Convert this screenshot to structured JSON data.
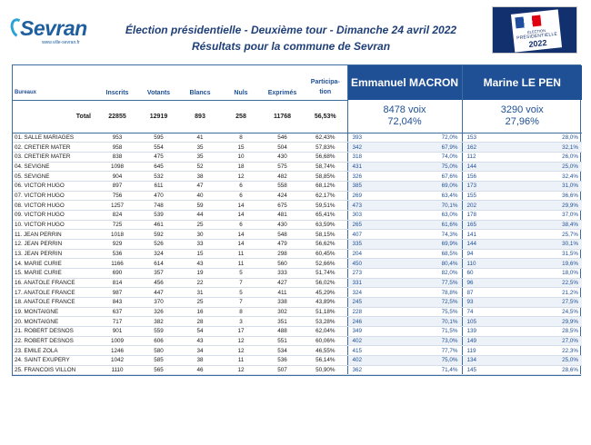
{
  "header": {
    "logo_text": "Sevran",
    "logo_url": "www.ville-sevran.fr",
    "title_line1": "Élection présidentielle - Deuxième tour - Dimanche 24 avril 2022",
    "title_line2": "Résultats pour la commune de Sevran",
    "emblem_line1": "ÉLECTION",
    "emblem_line2": "PRÉSIDENTIELLE",
    "emblem_line3": "2022"
  },
  "table": {
    "col_bureaux": "Bureaux",
    "col_inscrits": "Inscrits",
    "col_votants": "Votants",
    "col_blancs": "Blancs",
    "col_nuls": "Nuls",
    "col_exprimes": "Exprimés",
    "col_participation_1": "Participa-",
    "col_participation_2": "tion",
    "candidate1": "Emmanuel MACRON",
    "candidate2": "Marine LE PEN",
    "total": {
      "label": "Total",
      "inscrits": "22855",
      "votants": "12919",
      "blancs": "893",
      "nuls": "258",
      "exprimes": "11768",
      "participation": "56,53%",
      "c1_voix": "8478 voix",
      "c1_pct": "72,04%",
      "c2_voix": "3290 voix",
      "c2_pct": "27,96%"
    },
    "rows": [
      {
        "bureau": "01. SALLE MARIAGES",
        "inscrits": "953",
        "votants": "595",
        "blancs": "41",
        "nuls": "8",
        "exprimes": "546",
        "participation": "62,43%",
        "c1_v": "393",
        "c1_p": "72,0%",
        "c2_v": "153",
        "c2_p": "28,0%"
      },
      {
        "bureau": "02. CRETIER MATER",
        "inscrits": "958",
        "votants": "554",
        "blancs": "35",
        "nuls": "15",
        "exprimes": "504",
        "participation": "57,83%",
        "c1_v": "342",
        "c1_p": "67,9%",
        "c2_v": "162",
        "c2_p": "32,1%"
      },
      {
        "bureau": "03. CRETIER MATER",
        "inscrits": "838",
        "votants": "475",
        "blancs": "35",
        "nuls": "10",
        "exprimes": "430",
        "participation": "56,68%",
        "c1_v": "318",
        "c1_p": "74,0%",
        "c2_v": "112",
        "c2_p": "26,0%"
      },
      {
        "bureau": "04. SEVIGNE",
        "inscrits": "1098",
        "votants": "645",
        "blancs": "52",
        "nuls": "18",
        "exprimes": "575",
        "participation": "58,74%",
        "c1_v": "431",
        "c1_p": "75,0%",
        "c2_v": "144",
        "c2_p": "25,0%"
      },
      {
        "bureau": "05. SEVIGNE",
        "inscrits": "904",
        "votants": "532",
        "blancs": "38",
        "nuls": "12",
        "exprimes": "482",
        "participation": "58,85%",
        "c1_v": "326",
        "c1_p": "67,6%",
        "c2_v": "156",
        "c2_p": "32,4%"
      },
      {
        "bureau": "06. VICTOR HUGO",
        "inscrits": "897",
        "votants": "611",
        "blancs": "47",
        "nuls": "6",
        "exprimes": "558",
        "participation": "68,12%",
        "c1_v": "385",
        "c1_p": "69,0%",
        "c2_v": "173",
        "c2_p": "31,0%"
      },
      {
        "bureau": "07. VICTOR HUGO",
        "inscrits": "756",
        "votants": "470",
        "blancs": "40",
        "nuls": "6",
        "exprimes": "424",
        "participation": "62,17%",
        "c1_v": "269",
        "c1_p": "63,4%",
        "c2_v": "155",
        "c2_p": "36,6%"
      },
      {
        "bureau": "08. VICTOR HUGO",
        "inscrits": "1257",
        "votants": "748",
        "blancs": "59",
        "nuls": "14",
        "exprimes": "675",
        "participation": "59,51%",
        "c1_v": "473",
        "c1_p": "70,1%",
        "c2_v": "202",
        "c2_p": "29,9%"
      },
      {
        "bureau": "09. VICTOR HUGO",
        "inscrits": "824",
        "votants": "539",
        "blancs": "44",
        "nuls": "14",
        "exprimes": "481",
        "participation": "65,41%",
        "c1_v": "303",
        "c1_p": "63,0%",
        "c2_v": "178",
        "c2_p": "37,0%"
      },
      {
        "bureau": "10. VICTOR HUGO",
        "inscrits": "725",
        "votants": "461",
        "blancs": "25",
        "nuls": "6",
        "exprimes": "430",
        "participation": "63,59%",
        "c1_v": "265",
        "c1_p": "61,6%",
        "c2_v": "165",
        "c2_p": "38,4%"
      },
      {
        "bureau": "11. JEAN PERRIN",
        "inscrits": "1018",
        "votants": "592",
        "blancs": "30",
        "nuls": "14",
        "exprimes": "548",
        "participation": "58,15%",
        "c1_v": "407",
        "c1_p": "74,3%",
        "c2_v": "141",
        "c2_p": "25,7%"
      },
      {
        "bureau": "12. JEAN PERRIN",
        "inscrits": "929",
        "votants": "526",
        "blancs": "33",
        "nuls": "14",
        "exprimes": "479",
        "participation": "56,62%",
        "c1_v": "335",
        "c1_p": "69,9%",
        "c2_v": "144",
        "c2_p": "30,1%"
      },
      {
        "bureau": "13. JEAN PERRIN",
        "inscrits": "536",
        "votants": "324",
        "blancs": "15",
        "nuls": "11",
        "exprimes": "298",
        "participation": "60,45%",
        "c1_v": "204",
        "c1_p": "68,5%",
        "c2_v": "94",
        "c2_p": "31,5%"
      },
      {
        "bureau": "14. MARIE CURIE",
        "inscrits": "1166",
        "votants": "614",
        "blancs": "43",
        "nuls": "11",
        "exprimes": "560",
        "participation": "52,66%",
        "c1_v": "450",
        "c1_p": "80,4%",
        "c2_v": "110",
        "c2_p": "19,6%"
      },
      {
        "bureau": "15. MARIE CURIE",
        "inscrits": "690",
        "votants": "357",
        "blancs": "19",
        "nuls": "5",
        "exprimes": "333",
        "participation": "51,74%",
        "c1_v": "273",
        "c1_p": "82,0%",
        "c2_v": "60",
        "c2_p": "18,0%"
      },
      {
        "bureau": "16. ANATOLE FRANCE",
        "inscrits": "814",
        "votants": "456",
        "blancs": "22",
        "nuls": "7",
        "exprimes": "427",
        "participation": "56,02%",
        "c1_v": "331",
        "c1_p": "77,5%",
        "c2_v": "96",
        "c2_p": "22,5%"
      },
      {
        "bureau": "17. ANATOLE FRANCE",
        "inscrits": "987",
        "votants": "447",
        "blancs": "31",
        "nuls": "5",
        "exprimes": "411",
        "participation": "45,29%",
        "c1_v": "324",
        "c1_p": "78,8%",
        "c2_v": "87",
        "c2_p": "21,2%"
      },
      {
        "bureau": "18. ANATOLE FRANCE",
        "inscrits": "843",
        "votants": "370",
        "blancs": "25",
        "nuls": "7",
        "exprimes": "338",
        "participation": "43,89%",
        "c1_v": "245",
        "c1_p": "72,5%",
        "c2_v": "93",
        "c2_p": "27,5%"
      },
      {
        "bureau": "19. MONTAIGNE",
        "inscrits": "637",
        "votants": "326",
        "blancs": "16",
        "nuls": "8",
        "exprimes": "302",
        "participation": "51,18%",
        "c1_v": "228",
        "c1_p": "75,5%",
        "c2_v": "74",
        "c2_p": "24,5%"
      },
      {
        "bureau": "20. MONTAIGNE",
        "inscrits": "717",
        "votants": "382",
        "blancs": "28",
        "nuls": "3",
        "exprimes": "351",
        "participation": "53,28%",
        "c1_v": "246",
        "c1_p": "70,1%",
        "c2_v": "105",
        "c2_p": "29,9%"
      },
      {
        "bureau": "21. ROBERT DESNOS",
        "inscrits": "901",
        "votants": "559",
        "blancs": "54",
        "nuls": "17",
        "exprimes": "488",
        "participation": "62,04%",
        "c1_v": "349",
        "c1_p": "71,5%",
        "c2_v": "139",
        "c2_p": "28,5%"
      },
      {
        "bureau": "22. ROBERT DESNOS",
        "inscrits": "1009",
        "votants": "606",
        "blancs": "43",
        "nuls": "12",
        "exprimes": "551",
        "participation": "60,06%",
        "c1_v": "402",
        "c1_p": "73,0%",
        "c2_v": "149",
        "c2_p": "27,0%"
      },
      {
        "bureau": "23. EMILE ZOLA",
        "inscrits": "1246",
        "votants": "580",
        "blancs": "34",
        "nuls": "12",
        "exprimes": "534",
        "participation": "46,55%",
        "c1_v": "415",
        "c1_p": "77,7%",
        "c2_v": "119",
        "c2_p": "22,3%"
      },
      {
        "bureau": "24. SAINT EXUPERY",
        "inscrits": "1042",
        "votants": "585",
        "blancs": "38",
        "nuls": "11",
        "exprimes": "536",
        "participation": "56,14%",
        "c1_v": "402",
        "c1_p": "75,0%",
        "c2_v": "134",
        "c2_p": "25,0%"
      },
      {
        "bureau": "25. FRANCOIS VILLON",
        "inscrits": "1110",
        "votants": "565",
        "blancs": "46",
        "nuls": "12",
        "exprimes": "507",
        "participation": "50,90%",
        "c1_v": "362",
        "c1_p": "71,4%",
        "c2_v": "145",
        "c2_p": "28,6%"
      }
    ]
  },
  "colors": {
    "accent": "#1f4f95",
    "title": "#1f3f78",
    "emblem_bg": "#13306e"
  }
}
